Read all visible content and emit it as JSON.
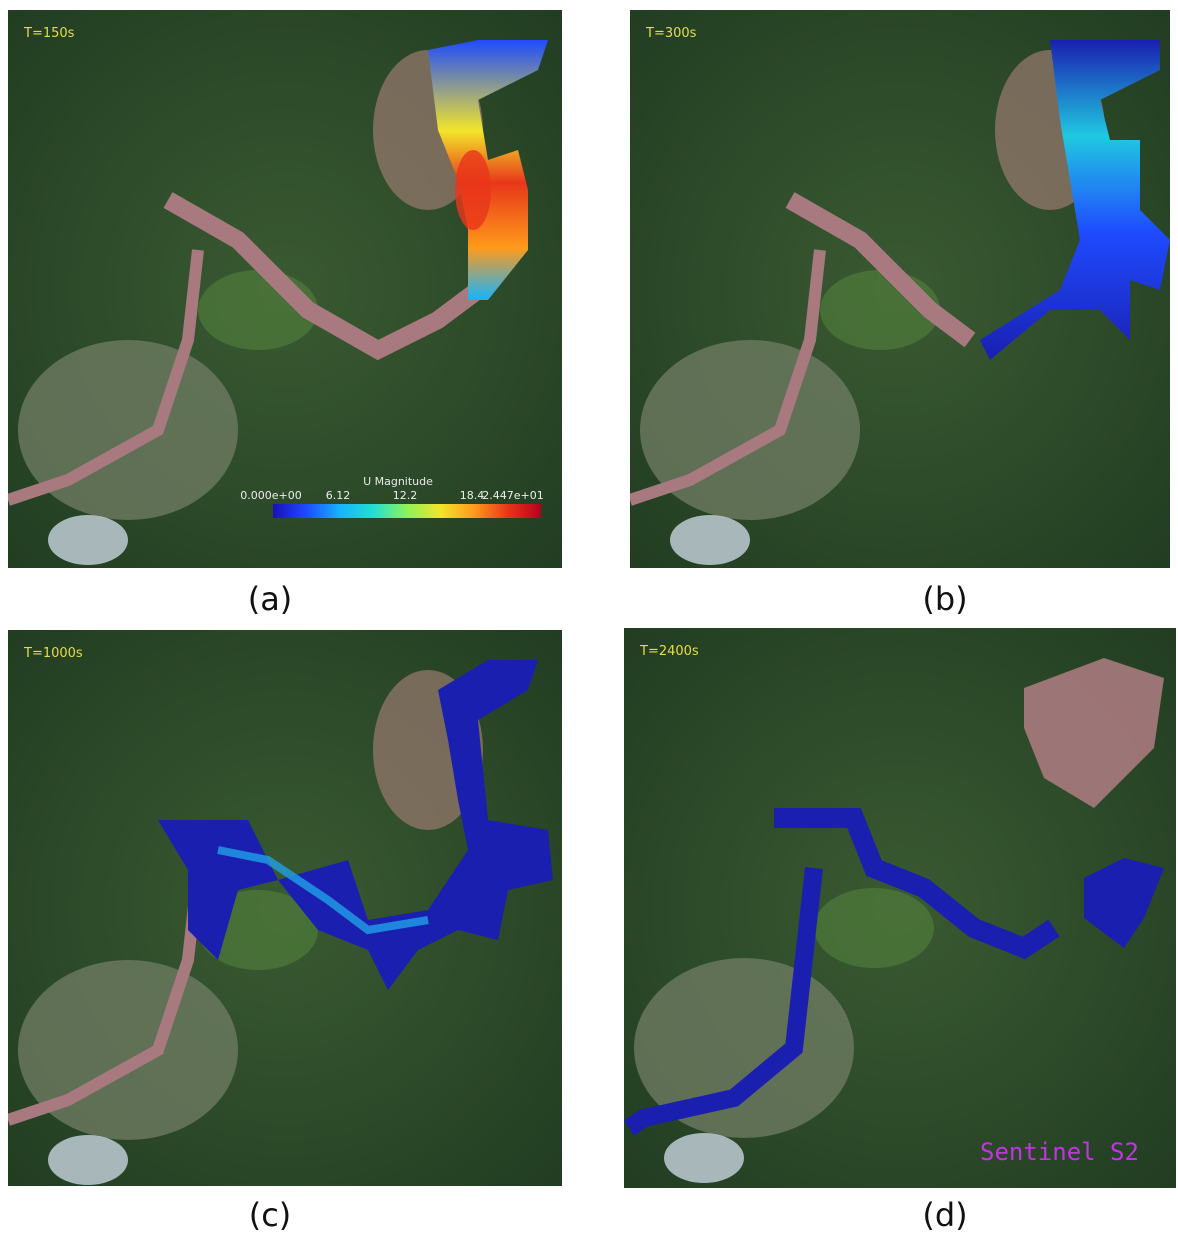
{
  "panels": [
    {
      "id": "a",
      "time_label": "T=150s",
      "caption": "(a)"
    },
    {
      "id": "b",
      "time_label": "T=300s",
      "caption": "(b)"
    },
    {
      "id": "c",
      "time_label": "T=1000s",
      "caption": "(c)"
    },
    {
      "id": "d",
      "time_label": "T=2400s",
      "caption": "(d)"
    }
  ],
  "legend": {
    "title": "U Magnitude",
    "ticks": [
      "0.000e+00",
      "6.12",
      "12.2",
      "18.4",
      "2.447e+01"
    ],
    "range": [
      0,
      24.47
    ],
    "colormap": [
      "#1a0fb8",
      "#1f4bff",
      "#16b3ff",
      "#22e0d0",
      "#8ef25a",
      "#f2e52a",
      "#ff9a1a",
      "#e8361a",
      "#b8001e"
    ]
  },
  "watermark": "Sentinel S2",
  "colors": {
    "vegetation": "#2c4a28",
    "mud": "#a87a80",
    "flow_low": "#1a1fb0",
    "flow_mid": "#20c8e0",
    "flow_high": "#e83a18",
    "time_label": "#e6dc4a",
    "watermark": "#c432e6"
  }
}
